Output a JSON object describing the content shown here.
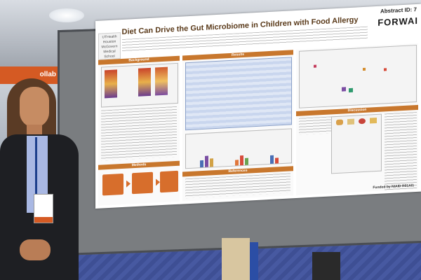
{
  "poster": {
    "title": "Diet Can Drive the Gut Microbiome in Children with Food Allergy",
    "abstract_id": "Abstract ID: 7",
    "brand": "FORWAI",
    "institution_logo": "UTHealth Houston McGovern Medical School",
    "sections": {
      "background": "Background",
      "results": "Results",
      "discussion": "Discussion",
      "methods": "Methods",
      "references": "References"
    },
    "funding": "Funded by NIAID R01AI1"
  },
  "venue": {
    "banner_text": "ollab"
  },
  "colors": {
    "section_bar": "#c8772d",
    "table_blue": "#c9d6ee",
    "carpet": "#3e4f94",
    "board": "#7a7d80"
  }
}
